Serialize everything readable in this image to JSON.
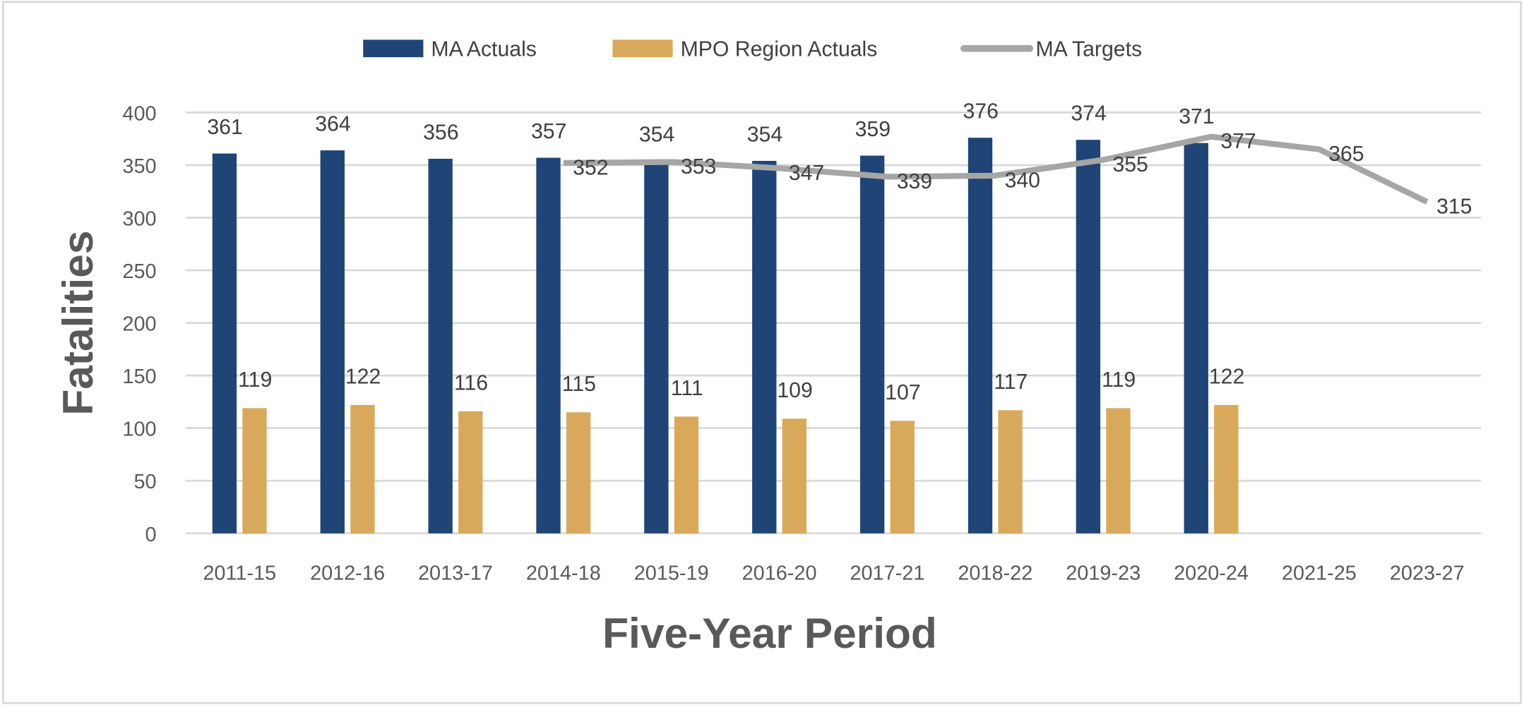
{
  "chart_data": {
    "type": "bar",
    "title": "",
    "xlabel": "Five-Year Period",
    "ylabel": "Fatalities",
    "ylim": [
      0,
      400
    ],
    "yticks": [
      0,
      50,
      100,
      150,
      200,
      250,
      300,
      350,
      400
    ],
    "grid": true,
    "legend_position": "top",
    "categories": [
      "2011-15",
      "2012-16",
      "2013-17",
      "2014-18",
      "2015-19",
      "2016-20",
      "2017-21",
      "2018-22",
      "2019-23",
      "2020-24",
      "2021-25",
      "2023-27"
    ],
    "series": [
      {
        "name": "MA Actuals",
        "type": "bar",
        "color": "#1f4576",
        "values": [
          361,
          364,
          356,
          357,
          354,
          354,
          359,
          376,
          374,
          371,
          null,
          null
        ]
      },
      {
        "name": "MPO Region Actuals",
        "type": "bar",
        "color": "#d9a95b",
        "values": [
          119,
          122,
          116,
          115,
          111,
          109,
          107,
          117,
          119,
          122,
          null,
          null
        ]
      },
      {
        "name": "MA Targets",
        "type": "line",
        "color": "#a6a6a6",
        "values": [
          null,
          null,
          null,
          352,
          353,
          347,
          339,
          340,
          355,
          377,
          365,
          315
        ]
      }
    ]
  }
}
